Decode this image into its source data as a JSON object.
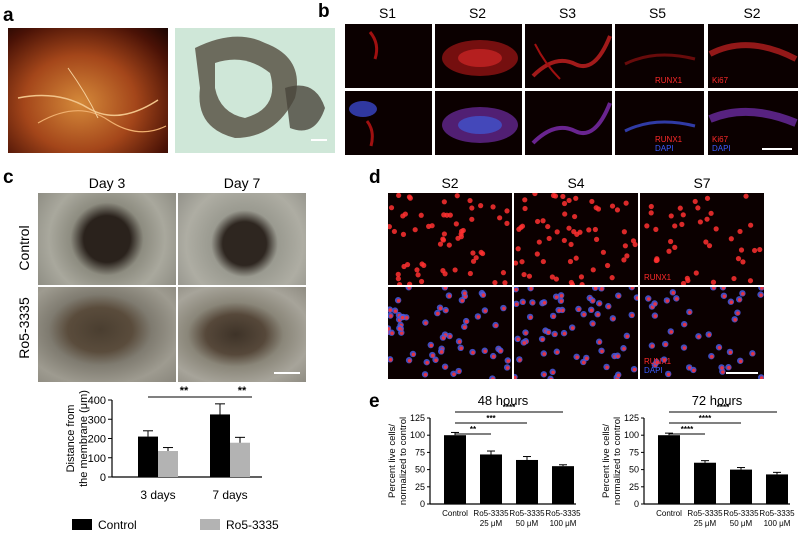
{
  "panels": {
    "a": {
      "label": "a"
    },
    "b": {
      "label": "b",
      "headers": [
        "S1",
        "S2",
        "S3",
        "S5",
        "S2"
      ],
      "stains": {
        "runx1": "RUNX1",
        "ki67": "Ki67",
        "dapi": "DAPI"
      }
    },
    "c": {
      "label": "c",
      "cols": [
        "Day 3",
        "Day 7"
      ],
      "rows": [
        "Control",
        "Ro5-3335"
      ]
    },
    "d": {
      "label": "d",
      "headers": [
        "S2",
        "S4",
        "S7"
      ],
      "stains": {
        "runx1": "RUNX1",
        "dapi": "DAPI"
      }
    },
    "e": {
      "label": "e"
    }
  },
  "colors": {
    "control": "#000000",
    "treated": "#b3b3b3",
    "runx1": "#ff2a2a",
    "dapi": "#3a5cff"
  },
  "chart_data": [
    {
      "type": "bar",
      "panel": "c",
      "title": "",
      "ylabel": "Distance from the membrane (μm)",
      "xlabel": "",
      "categories": [
        "3 days",
        "7 days"
      ],
      "ylim": [
        0,
        400
      ],
      "yticks": [
        0,
        100,
        200,
        300,
        400
      ],
      "series": [
        {
          "name": "Control",
          "values": [
            210,
            325
          ],
          "errors": [
            30,
            55
          ]
        },
        {
          "name": "Ro5-3335",
          "values": [
            135,
            178
          ],
          "errors": [
            18,
            28
          ]
        }
      ],
      "significance": [
        {
          "label": "**",
          "from": [
            0,
            0
          ],
          "to": [
            1,
            0
          ]
        },
        {
          "label": "**",
          "from": [
            1,
            0
          ],
          "to": [
            1,
            1
          ]
        }
      ],
      "legend": "bottom"
    },
    {
      "type": "bar",
      "panel": "e",
      "title": "48 hours",
      "ylabel": "Percent live cells/ normalized to control",
      "xlabel": "",
      "categories": [
        "Control",
        "Ro5-3335 25 μM",
        "Ro5-3335 50 μM",
        "Ro5-3335 100 μM"
      ],
      "ylim": [
        0,
        125
      ],
      "yticks": [
        0,
        25,
        50,
        75,
        100,
        125
      ],
      "values": [
        100,
        72,
        64,
        55
      ],
      "errors": [
        4,
        5,
        5,
        2
      ],
      "significance": [
        {
          "label": "**",
          "to": 1
        },
        {
          "label": "***",
          "to": 2
        },
        {
          "label": "****",
          "to": 3
        }
      ]
    },
    {
      "type": "bar",
      "panel": "e",
      "title": "72 hours",
      "ylabel": "Percent live cells/ normalized to control",
      "xlabel": "",
      "categories": [
        "Control",
        "Ro5-3335 25 μM",
        "Ro5-3335 50 μM",
        "Ro5-3335 100 μM"
      ],
      "ylim": [
        0,
        125
      ],
      "yticks": [
        0,
        25,
        50,
        75,
        100,
        125
      ],
      "values": [
        100,
        60,
        50,
        43
      ],
      "errors": [
        3,
        3,
        3,
        3
      ],
      "significance": [
        {
          "label": "****",
          "to": 1
        },
        {
          "label": "****",
          "to": 2
        },
        {
          "label": "****",
          "to": 3
        }
      ]
    }
  ]
}
